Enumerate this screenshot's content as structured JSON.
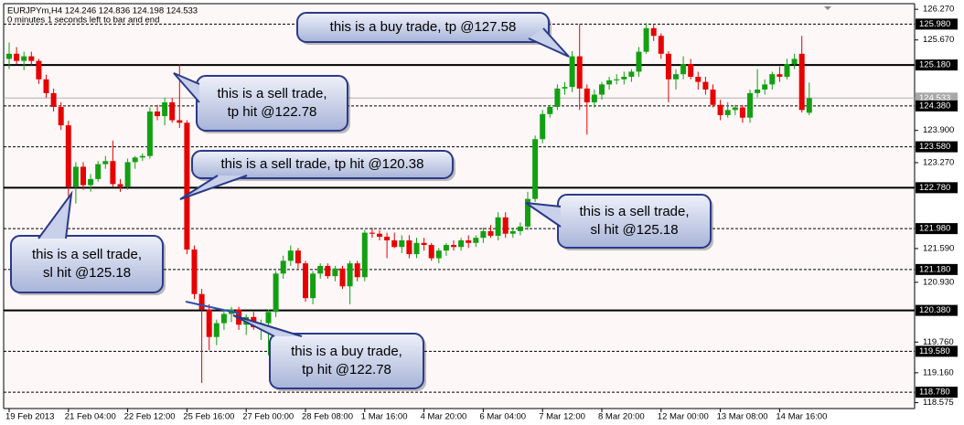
{
  "chart_data": {
    "type": "candlestick",
    "title": "EURJPYm,H4  124.246 124.836 124.198 124.533",
    "subtitle": "0 minutes 1 seconds left to bar and end",
    "background": "#fdf7f7",
    "bull_color": "#12a012",
    "bear_color": "#e60000",
    "grid": false,
    "ylim": [
      118.46,
      126.38
    ],
    "yticks": [
      {
        "value": 126.27,
        "label": "126.270"
      },
      {
        "value": 125.67,
        "label": "125.670"
      },
      {
        "value": 123.9,
        "label": "123.900"
      },
      {
        "value": 123.27,
        "label": "123.270"
      },
      {
        "value": 121.59,
        "label": "121.590"
      },
      {
        "value": 120.93,
        "label": "120.930"
      },
      {
        "value": 119.76,
        "label": "119.760"
      },
      {
        "value": 119.16,
        "label": "119.160"
      },
      {
        "value": 118.575,
        "label": "118.575"
      }
    ],
    "levels": [
      {
        "value": 125.98,
        "label": "125.980",
        "style": "dashed"
      },
      {
        "value": 125.18,
        "label": "125.180",
        "style": "solid"
      },
      {
        "value": 124.38,
        "label": "124.380",
        "style": "dashed"
      },
      {
        "value": 123.58,
        "label": "123.580",
        "style": "dashed"
      },
      {
        "value": 122.78,
        "label": "122.780",
        "style": "solid"
      },
      {
        "value": 121.98,
        "label": "121.980",
        "style": "dashed"
      },
      {
        "value": 121.18,
        "label": "121.180",
        "style": "dashed"
      },
      {
        "value": 120.38,
        "label": "120.380",
        "style": "solid"
      },
      {
        "value": 119.58,
        "label": "119.580",
        "style": "dashed"
      },
      {
        "value": 118.78,
        "label": "118.780",
        "style": "dashed"
      }
    ],
    "current_price": {
      "value": 124.533,
      "label": "124.533"
    },
    "categories": [
      "19 Feb 2013",
      null,
      null,
      null,
      null,
      null,
      null,
      null,
      "21 Feb 04:00",
      null,
      null,
      null,
      null,
      null,
      null,
      null,
      "22 Feb 12:00",
      null,
      null,
      null,
      null,
      null,
      null,
      null,
      "25 Feb 16:00",
      null,
      null,
      null,
      null,
      null,
      null,
      null,
      "27 Feb 00:00",
      null,
      null,
      null,
      null,
      null,
      null,
      null,
      "28 Feb 08:00",
      null,
      null,
      null,
      null,
      null,
      null,
      null,
      "1 Mar 16:00",
      null,
      null,
      null,
      null,
      null,
      null,
      null,
      "4 Mar 20:00",
      null,
      null,
      null,
      null,
      null,
      null,
      null,
      "6 Mar 04:00",
      null,
      null,
      null,
      null,
      null,
      null,
      null,
      "7 Mar 12:00",
      null,
      null,
      null,
      null,
      null,
      null,
      null,
      "8 Mar 20:00",
      null,
      null,
      null,
      null,
      null,
      null,
      null,
      "12 Mar 00:00",
      null,
      null,
      null,
      null,
      null,
      null,
      null,
      "13 Mar 08:00",
      null,
      null,
      null,
      null,
      null,
      null,
      null,
      "14 Mar 16:00",
      null,
      null,
      null,
      null
    ],
    "ohlc": [
      [
        125.3,
        125.62,
        125.1,
        125.4
      ],
      [
        125.4,
        125.53,
        125.2,
        125.26
      ],
      [
        125.26,
        125.44,
        125.08,
        125.35
      ],
      [
        125.35,
        125.44,
        125.17,
        125.26
      ],
      [
        125.26,
        125.3,
        124.81,
        124.9
      ],
      [
        124.9,
        124.99,
        124.54,
        124.63
      ],
      [
        124.63,
        124.72,
        124.27,
        124.36
      ],
      [
        124.36,
        124.45,
        123.91,
        124.0
      ],
      [
        124.0,
        124.09,
        122.6,
        122.8
      ],
      [
        122.8,
        123.28,
        122.47,
        123.19
      ],
      [
        123.19,
        123.28,
        122.74,
        122.83
      ],
      [
        122.83,
        123.05,
        122.7,
        122.95
      ],
      [
        122.95,
        123.3,
        122.9,
        123.24
      ],
      [
        123.24,
        123.4,
        123.15,
        123.3
      ],
      [
        123.3,
        123.7,
        122.8,
        122.85
      ],
      [
        122.85,
        122.95,
        122.7,
        122.8
      ],
      [
        122.8,
        123.35,
        122.74,
        123.28
      ],
      [
        123.28,
        123.4,
        123.15,
        123.37
      ],
      [
        123.37,
        123.45,
        123.3,
        123.4
      ],
      [
        123.4,
        124.35,
        123.35,
        124.27
      ],
      [
        124.27,
        124.4,
        124.1,
        124.18
      ],
      [
        124.18,
        124.54,
        124.0,
        124.45
      ],
      [
        124.45,
        124.54,
        124.05,
        124.1
      ],
      [
        124.1,
        125.2,
        123.95,
        124.05
      ],
      [
        124.05,
        124.1,
        121.48,
        121.57
      ],
      [
        121.57,
        121.65,
        120.6,
        120.7
      ],
      [
        120.7,
        120.8,
        118.96,
        120.4
      ],
      [
        120.4,
        120.5,
        119.6,
        119.86
      ],
      [
        119.86,
        120.2,
        119.7,
        120.13
      ],
      [
        120.13,
        120.4,
        120.0,
        120.31
      ],
      [
        120.31,
        120.45,
        120.15,
        120.4
      ],
      [
        120.4,
        120.45,
        120.0,
        120.1
      ],
      [
        120.1,
        120.3,
        119.9,
        120.25
      ],
      [
        120.25,
        120.35,
        120.0,
        120.05
      ],
      [
        120.05,
        120.2,
        119.8,
        120.13
      ],
      [
        120.13,
        120.4,
        119.5,
        120.35
      ],
      [
        120.35,
        121.15,
        120.25,
        121.1
      ],
      [
        121.1,
        121.45,
        121.0,
        121.35
      ],
      [
        121.35,
        121.65,
        121.25,
        121.55
      ],
      [
        121.55,
        121.6,
        121.2,
        121.3
      ],
      [
        121.3,
        121.35,
        120.55,
        120.62
      ],
      [
        120.62,
        121.15,
        120.5,
        121.1
      ],
      [
        121.1,
        121.3,
        121.0,
        121.25
      ],
      [
        121.25,
        121.3,
        121.0,
        121.05
      ],
      [
        121.05,
        121.25,
        120.95,
        121.2
      ],
      [
        121.2,
        121.25,
        120.8,
        120.85
      ],
      [
        120.85,
        121.35,
        120.5,
        121.3
      ],
      [
        121.3,
        121.35,
        120.95,
        121.03
      ],
      [
        121.03,
        121.95,
        120.95,
        121.9
      ],
      [
        121.9,
        122.0,
        121.8,
        121.88
      ],
      [
        121.88,
        121.95,
        121.75,
        121.82
      ],
      [
        121.82,
        121.9,
        121.4,
        121.75
      ],
      [
        121.75,
        121.9,
        121.6,
        121.62
      ],
      [
        121.62,
        121.85,
        121.5,
        121.75
      ],
      [
        121.75,
        121.85,
        121.4,
        121.48
      ],
      [
        121.48,
        121.8,
        121.4,
        121.7
      ],
      [
        121.7,
        121.8,
        121.55,
        121.66
      ],
      [
        121.66,
        121.7,
        121.35,
        121.4
      ],
      [
        121.4,
        121.6,
        121.3,
        121.55
      ],
      [
        121.55,
        121.7,
        121.45,
        121.66
      ],
      [
        121.66,
        121.75,
        121.55,
        121.62
      ],
      [
        121.62,
        121.8,
        121.55,
        121.75
      ],
      [
        121.75,
        121.85,
        121.6,
        121.7
      ],
      [
        121.7,
        121.85,
        121.62,
        121.8
      ],
      [
        121.8,
        122.0,
        121.7,
        121.93
      ],
      [
        121.93,
        122.05,
        121.8,
        121.84
      ],
      [
        121.84,
        122.3,
        121.75,
        122.2
      ],
      [
        122.2,
        122.3,
        121.8,
        121.88
      ],
      [
        121.88,
        122.0,
        121.8,
        121.93
      ],
      [
        121.93,
        122.1,
        121.85,
        122.02
      ],
      [
        122.02,
        122.7,
        121.95,
        122.56
      ],
      [
        122.56,
        123.8,
        122.5,
        123.73
      ],
      [
        123.73,
        124.3,
        123.65,
        124.22
      ],
      [
        124.22,
        124.4,
        124.15,
        124.36
      ],
      [
        124.36,
        124.8,
        124.3,
        124.72
      ],
      [
        124.72,
        124.85,
        124.6,
        124.75
      ],
      [
        124.75,
        125.45,
        124.65,
        125.35
      ],
      [
        125.35,
        125.98,
        124.3,
        124.72
      ],
      [
        124.72,
        124.8,
        123.82,
        124.45
      ],
      [
        124.45,
        124.7,
        124.35,
        124.6
      ],
      [
        124.6,
        124.85,
        124.5,
        124.8
      ],
      [
        124.8,
        124.95,
        124.7,
        124.88
      ],
      [
        124.88,
        125.0,
        124.8,
        124.9
      ],
      [
        124.9,
        125.05,
        124.8,
        124.95
      ],
      [
        124.95,
        125.1,
        124.85,
        125.05
      ],
      [
        125.05,
        125.53,
        124.95,
        125.44
      ],
      [
        125.44,
        126.0,
        125.4,
        125.9
      ],
      [
        125.9,
        125.98,
        125.65,
        125.75
      ],
      [
        125.75,
        125.8,
        125.3,
        125.4
      ],
      [
        125.4,
        125.45,
        124.45,
        124.9
      ],
      [
        124.9,
        125.1,
        124.7,
        125.0
      ],
      [
        125.0,
        125.35,
        124.9,
        125.2
      ],
      [
        125.2,
        125.3,
        124.9,
        124.95
      ],
      [
        124.95,
        125.05,
        124.7,
        124.85
      ],
      [
        124.85,
        124.95,
        124.6,
        124.7
      ],
      [
        124.7,
        124.8,
        124.35,
        124.4
      ],
      [
        124.4,
        124.5,
        124.1,
        124.2
      ],
      [
        124.2,
        124.45,
        124.15,
        124.3
      ],
      [
        124.3,
        124.4,
        124.2,
        124.35
      ],
      [
        124.35,
        124.4,
        124.05,
        124.15
      ],
      [
        124.15,
        124.7,
        124.05,
        124.63
      ],
      [
        124.63,
        125.1,
        124.55,
        124.7
      ],
      [
        124.7,
        124.9,
        124.6,
        124.8
      ],
      [
        124.8,
        125.05,
        124.7,
        125.0
      ],
      [
        125.0,
        125.15,
        124.85,
        124.95
      ],
      [
        124.95,
        125.3,
        124.9,
        125.2
      ],
      [
        125.2,
        125.4,
        125.1,
        125.3
      ],
      [
        125.4,
        125.75,
        124.25,
        124.3
      ],
      [
        124.246,
        124.836,
        124.198,
        124.533
      ]
    ],
    "annotations": [
      {
        "lines": [
          "this is a buy trade, tp @127.58"
        ]
      },
      {
        "lines": [
          "this is a sell trade,",
          "tp hit @122.78"
        ]
      },
      {
        "lines": [
          "this is a sell trade, tp hit @120.38"
        ]
      },
      {
        "lines": [
          "this is a sell trade,",
          "sl hit @125.18"
        ]
      },
      {
        "lines": [
          "this is a sell trade,",
          "sl hit @125.18"
        ]
      },
      {
        "lines": [
          "this is a buy trade,",
          "tp hit @122.78"
        ]
      }
    ]
  }
}
